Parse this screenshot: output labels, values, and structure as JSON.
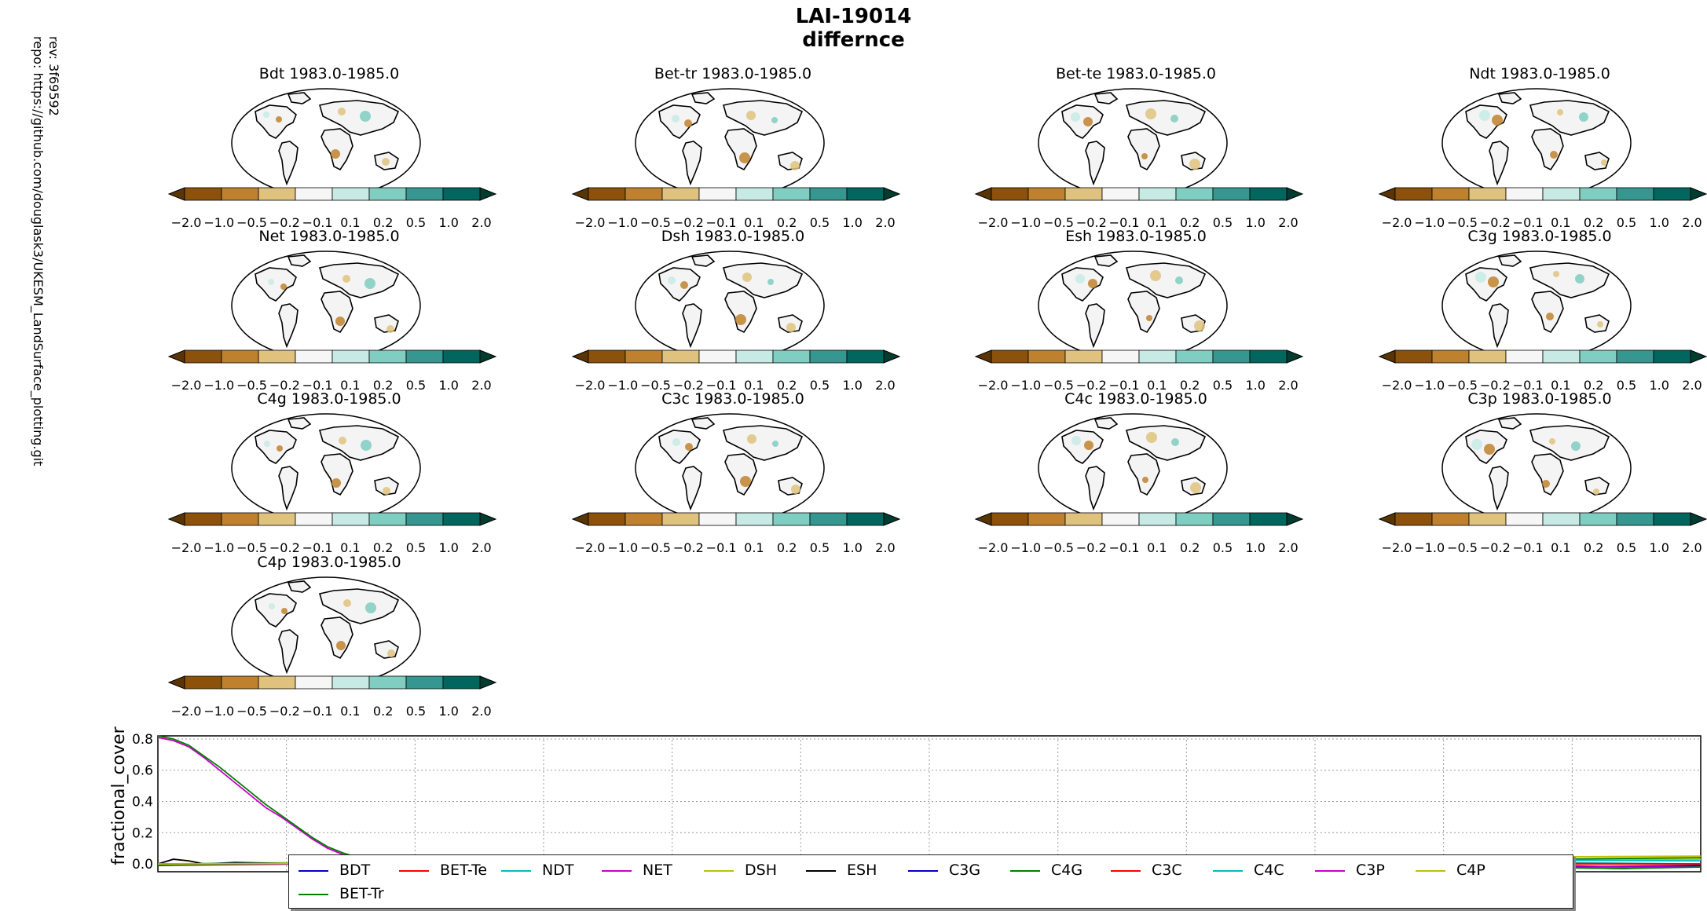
{
  "figure": {
    "title_line1": "LAI-19014",
    "title_line2": "differnce",
    "rev": "rev: 3f69592",
    "repo": "repo: https://github.com/douglask3/UKESM_LandSurface_plotting.git"
  },
  "colors": {
    "colorbar": [
      "#5a3504",
      "#8c510a",
      "#bf812d",
      "#dfc27d",
      "#f6f6f6",
      "#c7eae5",
      "#80cdc1",
      "#35978f",
      "#01665e",
      "#003c30"
    ],
    "series": {
      "BDT": "#0000cc",
      "BET-Te": "#ff0000",
      "NDT": "#00bfbf",
      "NET": "#cc00cc",
      "DSH": "#bfbf00",
      "ESH": "#000000",
      "C3G": "#0000cc",
      "C4G": "#008000",
      "C3C": "#ff0000",
      "C4C": "#00bfbf",
      "C3P": "#cc00cc",
      "C4P": "#bfbf00",
      "BET-Tr": "#008000"
    }
  },
  "chart_data": [
    {
      "type": "heatmap",
      "subtype": "map-panels",
      "colorbar_ticks": [
        "−2.0",
        "−1.0",
        "−0.5",
        "−0.2",
        "−0.1",
        "0.1",
        "0.2",
        "0.5",
        "1.0",
        "2.0"
      ],
      "colorbar_bounds": [
        -2.0,
        -1.0,
        -0.5,
        -0.2,
        -0.1,
        0.1,
        0.2,
        0.5,
        1.0,
        2.0
      ],
      "colorbar_extend": "both",
      "panels": [
        {
          "title": "Bdt 1983.0-1985.0"
        },
        {
          "title": "Bet-tr 1983.0-1985.0"
        },
        {
          "title": "Bet-te 1983.0-1985.0"
        },
        {
          "title": "Ndt 1983.0-1985.0"
        },
        {
          "title": "Net 1983.0-1985.0"
        },
        {
          "title": "Dsh 1983.0-1985.0"
        },
        {
          "title": "Esh 1983.0-1985.0"
        },
        {
          "title": "C3g 1983.0-1985.0"
        },
        {
          "title": "C4g 1983.0-1985.0"
        },
        {
          "title": "C3c 1983.0-1985.0"
        },
        {
          "title": "C4c 1983.0-1985.0"
        },
        {
          "title": "C3p 1983.0-1985.0"
        },
        {
          "title": "C4p 1983.0-1985.0"
        }
      ]
    },
    {
      "type": "line",
      "ylabel": "fractional_cover",
      "yticks": [
        "0.0",
        "0.2",
        "0.4",
        "0.6",
        "0.8"
      ],
      "ylim": [
        -0.05,
        0.82
      ],
      "xlim": [
        0,
        100
      ],
      "grid": true,
      "legend_placement": "lower center",
      "series": [
        {
          "name": "BDT",
          "values": [
            [
              0,
              -0.01
            ],
            [
              5,
              0.0
            ],
            [
              10,
              0.01
            ],
            [
              20,
              0.0
            ],
            [
              40,
              0.01
            ],
            [
              60,
              0.0
            ],
            [
              80,
              0.01
            ],
            [
              95,
              -0.02
            ],
            [
              100,
              -0.01
            ]
          ]
        },
        {
          "name": "BET-Te",
          "values": [
            [
              0,
              0.0
            ],
            [
              20,
              0.01
            ],
            [
              40,
              0.02
            ],
            [
              60,
              0.01
            ],
            [
              80,
              0.0
            ],
            [
              100,
              0.0
            ]
          ]
        },
        {
          "name": "NDT",
          "values": [
            [
              0,
              0.0
            ],
            [
              30,
              0.02
            ],
            [
              60,
              0.03
            ],
            [
              90,
              0.01
            ],
            [
              100,
              0.0
            ]
          ]
        },
        {
          "name": "NET",
          "values": [
            [
              0,
              0.81
            ],
            [
              1,
              0.79
            ],
            [
              2,
              0.75
            ],
            [
              3,
              0.68
            ],
            [
              4,
              0.6
            ],
            [
              5,
              0.52
            ],
            [
              6,
              0.44
            ],
            [
              7,
              0.36
            ],
            [
              8,
              0.3
            ],
            [
              9,
              0.23
            ],
            [
              10,
              0.16
            ],
            [
              11,
              0.1
            ],
            [
              12,
              0.06
            ],
            [
              13,
              0.03
            ],
            [
              14,
              0.02
            ],
            [
              16,
              0.01
            ],
            [
              20,
              0.0
            ],
            [
              40,
              0.0
            ],
            [
              70,
              0.0
            ],
            [
              88,
              -0.02
            ],
            [
              95,
              -0.03
            ],
            [
              100,
              -0.01
            ]
          ]
        },
        {
          "name": "DSH",
          "values": [
            [
              0,
              0.0
            ],
            [
              20,
              0.02
            ],
            [
              40,
              0.03
            ],
            [
              60,
              0.02
            ],
            [
              80,
              0.03
            ],
            [
              100,
              0.03
            ]
          ]
        },
        {
          "name": "ESH",
          "values": [
            [
              0,
              0.0
            ],
            [
              1,
              0.03
            ],
            [
              2,
              0.02
            ],
            [
              3,
              0.0
            ],
            [
              5,
              0.01
            ],
            [
              10,
              0.0
            ],
            [
              20,
              0.01
            ],
            [
              40,
              0.0
            ],
            [
              56,
              0.02
            ],
            [
              60,
              0.0
            ],
            [
              80,
              -0.01
            ],
            [
              100,
              -0.02
            ]
          ]
        },
        {
          "name": "C3G",
          "values": [
            [
              0,
              0.0
            ],
            [
              50,
              0.0
            ],
            [
              90,
              -0.02
            ],
            [
              100,
              -0.01
            ]
          ]
        },
        {
          "name": "C4G",
          "values": [
            [
              0,
              -0.01
            ],
            [
              30,
              0.02
            ],
            [
              60,
              0.03
            ],
            [
              90,
              0.03
            ],
            [
              100,
              0.04
            ]
          ]
        },
        {
          "name": "C3C",
          "values": [
            [
              0,
              0.0
            ],
            [
              40,
              0.01
            ],
            [
              56,
              0.03
            ],
            [
              70,
              0.01
            ],
            [
              100,
              0.0
            ]
          ]
        },
        {
          "name": "C4C",
          "values": [
            [
              0,
              0.0
            ],
            [
              40,
              0.02
            ],
            [
              70,
              0.03
            ],
            [
              100,
              0.02
            ]
          ]
        },
        {
          "name": "C3P",
          "values": [
            [
              0,
              0.0
            ],
            [
              50,
              0.0
            ],
            [
              85,
              -0.02
            ],
            [
              100,
              -0.02
            ]
          ]
        },
        {
          "name": "C4P",
          "values": [
            [
              0,
              0.0
            ],
            [
              50,
              0.02
            ],
            [
              80,
              0.04
            ],
            [
              100,
              0.05
            ]
          ]
        },
        {
          "name": "BET-Tr",
          "values": [
            [
              0,
              0.82
            ],
            [
              1,
              0.8
            ],
            [
              2,
              0.76
            ],
            [
              3,
              0.69
            ],
            [
              4,
              0.62
            ],
            [
              5,
              0.54
            ],
            [
              6,
              0.46
            ],
            [
              7,
              0.38
            ],
            [
              8,
              0.31
            ],
            [
              9,
              0.24
            ],
            [
              10,
              0.17
            ],
            [
              11,
              0.11
            ],
            [
              12,
              0.07
            ],
            [
              13,
              0.04
            ],
            [
              14,
              0.02
            ],
            [
              16,
              0.01
            ],
            [
              20,
              0.0
            ],
            [
              40,
              0.0
            ],
            [
              70,
              0.0
            ],
            [
              88,
              -0.02
            ],
            [
              95,
              -0.03
            ],
            [
              100,
              -0.02
            ]
          ]
        }
      ]
    }
  ]
}
